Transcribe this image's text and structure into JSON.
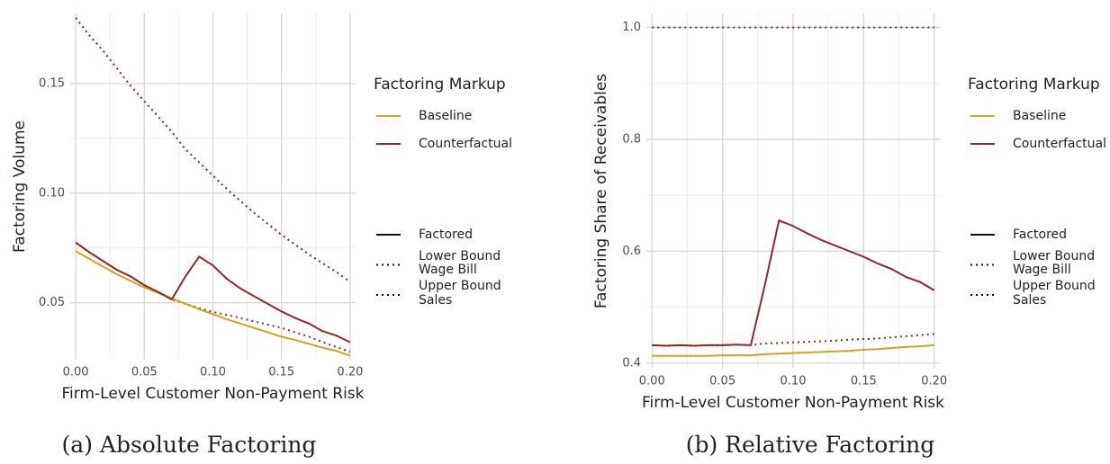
{
  "chart_data": [
    {
      "type": "line",
      "caption": "(a) Absolute Factoring",
      "xlabel": "Firm-Level Customer Non-Payment Risk",
      "ylabel": "Factoring Volume",
      "x": [
        0,
        0.01,
        0.02,
        0.03,
        0.04,
        0.05,
        0.06,
        0.07,
        0.08,
        0.09,
        0.1,
        0.11,
        0.12,
        0.13,
        0.14,
        0.15,
        0.16,
        0.17,
        0.18,
        0.19,
        0.2
      ],
      "xlim": [
        -0.004,
        0.204
      ],
      "xticks": [
        {
          "value": 0,
          "label": "0.00"
        },
        {
          "value": 0.05,
          "label": "0.05"
        },
        {
          "value": 0.1,
          "label": "0.10"
        },
        {
          "value": 0.15,
          "label": "0.15"
        },
        {
          "value": 0.2,
          "label": "0.20"
        }
      ],
      "ylim": [
        0.024,
        0.182
      ],
      "yticks": [
        0.05,
        {
          "value": 0.1,
          "label": "0.10"
        },
        0.15
      ],
      "grid": true,
      "color_legend": {
        "title": "Factoring Markup",
        "items": [
          {
            "name": "Baseline",
            "color": "#c9a82c"
          },
          {
            "name": "Counterfactual",
            "color": "#8b2b2b"
          }
        ]
      },
      "linetype_legend": {
        "items": [
          {
            "name": [
              "Factored"
            ],
            "style": "solid"
          },
          {
            "name": [
              "Lower Bound",
              "Wage Bill"
            ],
            "style": "dotted"
          },
          {
            "name": [
              "Upper Bound",
              "Sales"
            ],
            "style": "dotted"
          }
        ]
      },
      "series": [
        {
          "color": "#c9a82c",
          "style": "dotted",
          "values": [
            0.18,
            0.172,
            0.165,
            0.157,
            0.149,
            0.142,
            0.135,
            0.128,
            0.12,
            0.114,
            0.108,
            0.102,
            0.0965,
            0.091,
            0.086,
            0.081,
            0.0765,
            0.072,
            0.068,
            0.064,
            0.0595
          ]
        },
        {
          "color": "#8b2b2b",
          "style": "dotted",
          "values": [
            0.18,
            0.172,
            0.165,
            0.157,
            0.149,
            0.142,
            0.135,
            0.128,
            0.12,
            0.114,
            0.108,
            0.102,
            0.0965,
            0.091,
            0.086,
            0.081,
            0.0765,
            0.072,
            0.068,
            0.064,
            0.0595
          ]
        },
        {
          "color": "#c9a82c",
          "style": "dotted",
          "values": [
            0.0735,
            0.07,
            0.0665,
            0.063,
            0.06,
            0.057,
            0.0545,
            0.052,
            0.0495,
            0.047,
            0.0448,
            0.0425,
            0.0405,
            0.0385,
            0.0365,
            0.0345,
            0.033,
            0.0312,
            0.0295,
            0.028,
            0.0258
          ]
        },
        {
          "color": "#8b2b2b",
          "style": "dotted",
          "values": [
            0.0775,
            0.073,
            0.069,
            0.065,
            0.062,
            0.058,
            0.055,
            0.0515,
            0.0495,
            0.0475,
            0.0458,
            0.0445,
            0.043,
            0.0415,
            0.04,
            0.0385,
            0.0365,
            0.0345,
            0.032,
            0.0298,
            0.0275
          ]
        },
        {
          "color": "#c9a82c",
          "style": "solid",
          "values": [
            0.0735,
            0.07,
            0.0665,
            0.063,
            0.06,
            0.057,
            0.0545,
            0.052,
            0.0495,
            0.047,
            0.0448,
            0.0425,
            0.0405,
            0.0385,
            0.0365,
            0.0345,
            0.033,
            0.0312,
            0.0295,
            0.028,
            0.0258
          ]
        },
        {
          "color": "#8b2b2b",
          "style": "solid",
          "values": [
            0.0775,
            0.073,
            0.069,
            0.065,
            0.062,
            0.058,
            0.055,
            0.0515,
            0.062,
            0.071,
            0.067,
            0.061,
            0.0565,
            0.053,
            0.0495,
            0.046,
            0.043,
            0.0405,
            0.037,
            0.035,
            0.032
          ]
        }
      ]
    },
    {
      "type": "line",
      "caption": "(b) Relative Factoring",
      "xlabel": "Firm-Level Customer Non-Payment Risk",
      "ylabel": "Factoring Share of Receivables",
      "x": [
        0,
        0.01,
        0.02,
        0.03,
        0.04,
        0.05,
        0.06,
        0.07,
        0.08,
        0.09,
        0.1,
        0.11,
        0.12,
        0.13,
        0.14,
        0.15,
        0.16,
        0.17,
        0.18,
        0.19,
        0.2
      ],
      "xlim": [
        -0.004,
        0.204
      ],
      "xticks": [
        {
          "value": 0,
          "label": "0.00"
        },
        {
          "value": 0.05,
          "label": "0.05"
        },
        {
          "value": 0.1,
          "label": "0.10"
        },
        {
          "value": 0.15,
          "label": "0.15"
        },
        {
          "value": 0.2,
          "label": "0.20"
        }
      ],
      "ylim": [
        0.39,
        1.025
      ],
      "yticks": [
        0.4,
        0.6,
        0.8,
        {
          "value": 1,
          "label": "1.0"
        }
      ],
      "grid": true,
      "color_legend": {
        "title": "Factoring Markup",
        "items": [
          {
            "name": "Baseline",
            "color": "#c9a82c"
          },
          {
            "name": "Counterfactual",
            "color": "#8b2b2b"
          }
        ]
      },
      "linetype_legend": {
        "items": [
          {
            "name": [
              "Factored"
            ],
            "style": "solid"
          },
          {
            "name": [
              "Lower Bound",
              "Wage Bill"
            ],
            "style": "dotted"
          },
          {
            "name": [
              "Upper Bound",
              "Sales"
            ],
            "style": "dotted"
          }
        ]
      },
      "series": [
        {
          "color": "#c9a82c",
          "style": "dotted",
          "values": [
            1,
            1,
            1,
            1,
            1,
            1,
            1,
            1,
            1,
            1,
            1,
            1,
            1,
            1,
            1,
            1,
            1,
            1,
            1,
            1,
            1
          ]
        },
        {
          "color": "#8b2b2b",
          "style": "dotted",
          "values": [
            1,
            1,
            1,
            1,
            1,
            1,
            1,
            1,
            1,
            1,
            1,
            1,
            1,
            1,
            1,
            1,
            1,
            1,
            1,
            1,
            1
          ]
        },
        {
          "color": "#c9a82c",
          "style": "dotted",
          "values": [
            0.413,
            0.413,
            0.413,
            0.413,
            0.413,
            0.414,
            0.414,
            0.414,
            0.416,
            0.417,
            0.418,
            0.419,
            0.42,
            0.421,
            0.422,
            0.424,
            0.425,
            0.427,
            0.429,
            0.43,
            0.432
          ]
        },
        {
          "color": "#8b2b2b",
          "style": "dotted",
          "values": [
            0.432,
            0.431,
            0.432,
            0.431,
            0.432,
            0.432,
            0.433,
            0.432,
            0.435,
            0.436,
            0.437,
            0.438,
            0.439,
            0.44,
            0.442,
            0.443,
            0.444,
            0.446,
            0.448,
            0.45,
            0.452
          ]
        },
        {
          "color": "#c9a82c",
          "style": "solid",
          "values": [
            0.413,
            0.413,
            0.413,
            0.413,
            0.413,
            0.414,
            0.414,
            0.414,
            0.416,
            0.417,
            0.418,
            0.419,
            0.42,
            0.421,
            0.422,
            0.424,
            0.425,
            0.427,
            0.429,
            0.43,
            0.432
          ]
        },
        {
          "color": "#8b2b2b",
          "style": "solid",
          "values": [
            0.432,
            0.431,
            0.432,
            0.431,
            0.432,
            0.432,
            0.433,
            0.432,
            0.54,
            0.655,
            0.645,
            0.632,
            0.62,
            0.61,
            0.6,
            0.59,
            0.578,
            0.568,
            0.554,
            0.545,
            0.53
          ]
        }
      ]
    }
  ]
}
